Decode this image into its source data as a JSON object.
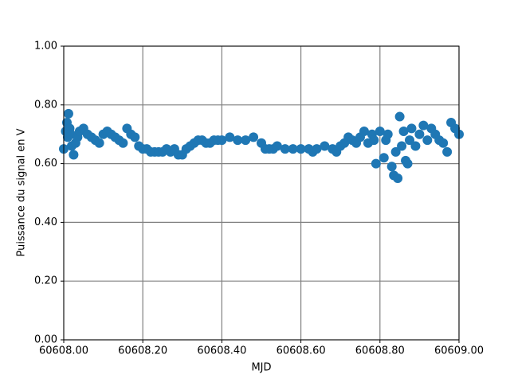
{
  "chart_data": {
    "type": "scatter",
    "xlabel": "MJD",
    "ylabel": "Puissance du signal en V",
    "xlim": [
      60608.0,
      60609.0
    ],
    "xticks": [
      {
        "value": 60608.0,
        "label": "60608.00"
      },
      {
        "value": 60608.2,
        "label": "60608.20"
      },
      {
        "value": 60608.4,
        "label": "60608.40"
      },
      {
        "value": 60608.6,
        "label": "60608.60"
      },
      {
        "value": 60608.8,
        "label": "60608.80"
      },
      {
        "value": 60609.0,
        "label": "60609.00"
      }
    ],
    "ylim": [
      0,
      1
    ],
    "yticks": [
      {
        "value": 0,
        "label": "0.00"
      },
      {
        "value": 0.2,
        "label": "0.20"
      },
      {
        "value": 0.4,
        "label": "0.40"
      },
      {
        "value": 0.6,
        "label": "0.60"
      },
      {
        "value": 0.8,
        "label": "0.80"
      },
      {
        "value": 1,
        "label": "1.00"
      }
    ],
    "grid": true,
    "series": [
      {
        "color": "#1f77b4",
        "x": [
          60608.0,
          60608.005,
          60608.008,
          60608.01,
          60608.012,
          60608.015,
          60608.018,
          60608.02,
          60608.025,
          60608.03,
          60608.035,
          60608.04,
          60608.05,
          60608.06,
          60608.07,
          60608.08,
          60608.09,
          60608.1,
          60608.11,
          60608.12,
          60608.13,
          60608.14,
          60608.15,
          60608.16,
          60608.17,
          60608.18,
          60608.19,
          60608.2,
          60608.21,
          60608.22,
          60608.23,
          60608.24,
          60608.25,
          60608.26,
          60608.27,
          60608.28,
          60608.29,
          60608.3,
          60608.31,
          60608.32,
          60608.33,
          60608.34,
          60608.35,
          60608.36,
          60608.37,
          60608.38,
          60608.39,
          60608.4,
          60608.42,
          60608.44,
          60608.46,
          60608.48,
          60608.5,
          60608.51,
          60608.52,
          60608.53,
          60608.54,
          60608.56,
          60608.58,
          60608.6,
          60608.62,
          60608.63,
          60608.64,
          60608.66,
          60608.68,
          60608.69,
          60608.7,
          60608.71,
          60608.72,
          60608.73,
          60608.74,
          60608.75,
          60608.76,
          60608.77,
          60608.78,
          60608.785,
          60608.79,
          60608.8,
          60608.81,
          60608.815,
          60608.82,
          60608.83,
          60608.835,
          60608.84,
          60608.845,
          60608.85,
          60608.855,
          60608.86,
          60608.865,
          60608.87,
          60608.875,
          60608.88,
          60608.89,
          60608.9,
          60608.91,
          60608.92,
          60608.93,
          60608.94,
          60608.95,
          60608.96,
          60608.97,
          60608.98,
          60608.99,
          60609.0
        ],
        "values": [
          0.65,
          0.71,
          0.74,
          0.69,
          0.77,
          0.72,
          0.7,
          0.66,
          0.63,
          0.67,
          0.69,
          0.71,
          0.72,
          0.7,
          0.69,
          0.68,
          0.67,
          0.7,
          0.71,
          0.7,
          0.69,
          0.68,
          0.67,
          0.72,
          0.7,
          0.69,
          0.66,
          0.65,
          0.65,
          0.64,
          0.64,
          0.64,
          0.64,
          0.65,
          0.64,
          0.65,
          0.63,
          0.63,
          0.65,
          0.66,
          0.67,
          0.68,
          0.68,
          0.67,
          0.67,
          0.68,
          0.68,
          0.68,
          0.69,
          0.68,
          0.68,
          0.69,
          0.67,
          0.65,
          0.65,
          0.65,
          0.66,
          0.65,
          0.65,
          0.65,
          0.65,
          0.64,
          0.65,
          0.66,
          0.65,
          0.64,
          0.66,
          0.67,
          0.69,
          0.68,
          0.67,
          0.69,
          0.71,
          0.67,
          0.7,
          0.68,
          0.6,
          0.71,
          0.62,
          0.68,
          0.7,
          0.59,
          0.56,
          0.64,
          0.55,
          0.76,
          0.66,
          0.71,
          0.61,
          0.6,
          0.68,
          0.72,
          0.66,
          0.7,
          0.73,
          0.68,
          0.72,
          0.7,
          0.68,
          0.67,
          0.64,
          0.74,
          0.72,
          0.7
        ]
      }
    ]
  }
}
